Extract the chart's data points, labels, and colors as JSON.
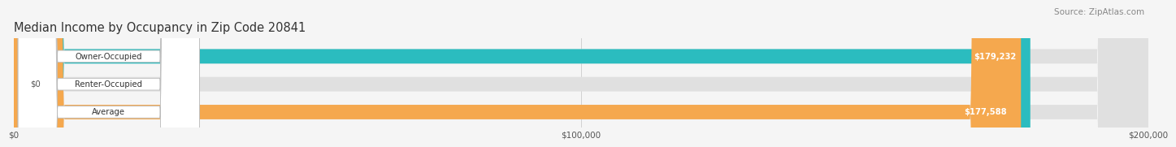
{
  "title": "Median Income by Occupancy in Zip Code 20841",
  "source": "Source: ZipAtlas.com",
  "categories": [
    "Owner-Occupied",
    "Renter-Occupied",
    "Average"
  ],
  "values": [
    179232,
    0,
    177588
  ],
  "bar_colors": [
    "#2bbcbf",
    "#c8a8d8",
    "#f5a84e"
  ],
  "bar_labels": [
    "$179,232",
    "$0",
    "$177,588"
  ],
  "xlim": [
    0,
    200000
  ],
  "xtick_labels": [
    "$0",
    "$100,000",
    "$200,000"
  ],
  "background_color": "#f5f5f5",
  "bar_bg_color": "#e0e0e0",
  "title_fontsize": 10.5,
  "source_fontsize": 7.5,
  "bar_height": 0.52
}
